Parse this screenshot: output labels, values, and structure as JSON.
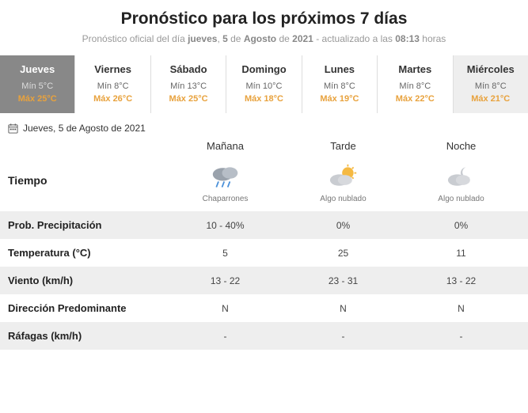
{
  "header": {
    "title": "Pronóstico para los próximos 7 días",
    "subtitle_prefix": "Pronóstico oficial del día ",
    "subtitle_day": "jueves",
    "subtitle_date_sep1": ", ",
    "subtitle_date_num": "5",
    "subtitle_de1": " de ",
    "subtitle_month": "Agosto",
    "subtitle_de2": " de ",
    "subtitle_year": "2021",
    "subtitle_updated": " - actualizado a las ",
    "subtitle_time": "08:13",
    "subtitle_hours": " horas"
  },
  "days": [
    {
      "name": "Jueves",
      "min": "Mín 5°C",
      "max": "Máx 25°C",
      "selected": true,
      "alt": false
    },
    {
      "name": "Viernes",
      "min": "Mín 8°C",
      "max": "Máx 26°C",
      "selected": false,
      "alt": false
    },
    {
      "name": "Sábado",
      "min": "Mín 13°C",
      "max": "Máx 25°C",
      "selected": false,
      "alt": false
    },
    {
      "name": "Domingo",
      "min": "Mín 10°C",
      "max": "Máx 18°C",
      "selected": false,
      "alt": false
    },
    {
      "name": "Lunes",
      "min": "Mín 8°C",
      "max": "Máx 19°C",
      "selected": false,
      "alt": false
    },
    {
      "name": "Martes",
      "min": "Mín 8°C",
      "max": "Máx 22°C",
      "selected": false,
      "alt": false
    },
    {
      "name": "Miércoles",
      "min": "Mín 8°C",
      "max": "Máx 21°C",
      "selected": false,
      "alt": true
    }
  ],
  "selected_date": "Jueves, 5 de Agosto de 2021",
  "periods": {
    "p0": "Mañana",
    "p1": "Tarde",
    "p2": "Noche"
  },
  "weather": {
    "label": "Tiempo",
    "p0": {
      "icon": "rain",
      "caption": "Chaparrones"
    },
    "p1": {
      "icon": "partly-sunny",
      "caption": "Algo nublado"
    },
    "p2": {
      "icon": "cloudy-night",
      "caption": "Algo nublado"
    }
  },
  "rows": [
    {
      "label": "Prob. Precipitación",
      "v0": "10 - 40%",
      "v1": "0%",
      "v2": "0%",
      "stripe": true
    },
    {
      "label": "Temperatura (°C)",
      "v0": "5",
      "v1": "25",
      "v2": "11",
      "stripe": false
    },
    {
      "label": "Viento (km/h)",
      "v0": "13 - 22",
      "v1": "23 - 31",
      "v2": "13 - 22",
      "stripe": true
    },
    {
      "label": "Dirección Predominante",
      "v0": "N",
      "v1": "N",
      "v2": "N",
      "stripe": false
    },
    {
      "label": "Ráfagas (km/h)",
      "v0": "-",
      "v1": "-",
      "v2": "-",
      "stripe": true
    }
  ],
  "colors": {
    "max_temp": "#e8a23d",
    "selected_bg": "#888888",
    "stripe_bg": "#eeeeee"
  }
}
